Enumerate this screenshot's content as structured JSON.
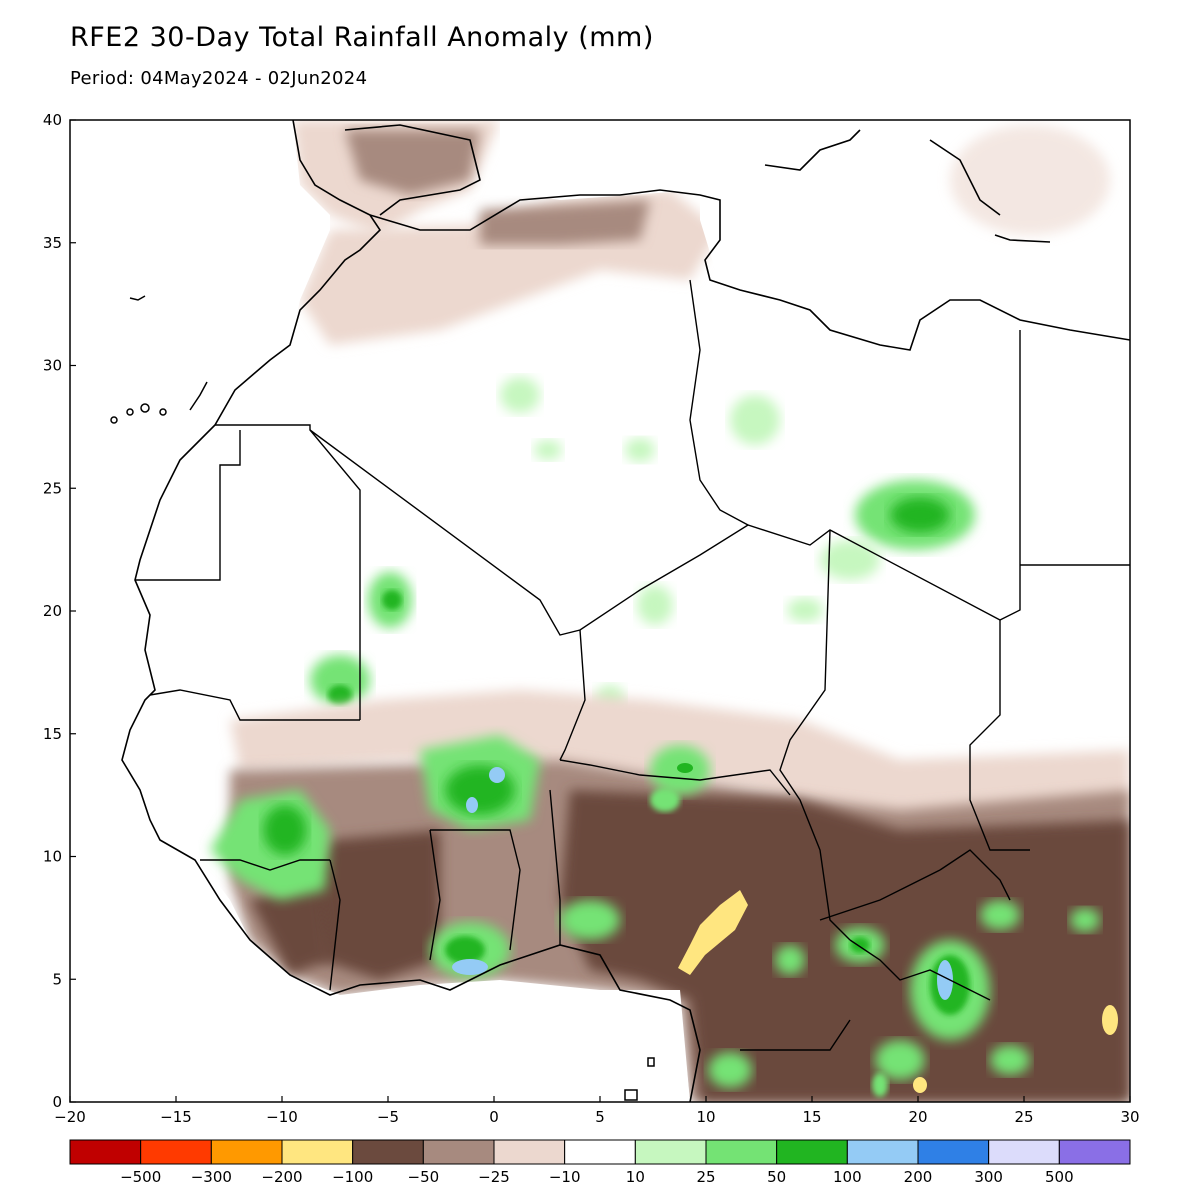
{
  "header": {
    "title": "RFE2 30-Day Total Rainfall Anomaly (mm)",
    "period": "Period: 04May2024 - 02Jun2024"
  },
  "map": {
    "lon_range": [
      -20,
      30
    ],
    "lat_range": [
      0,
      40
    ],
    "x_ticks": [
      {
        "value": -20,
        "label": "−20"
      },
      {
        "value": -15,
        "label": "−15"
      },
      {
        "value": -10,
        "label": "−10"
      },
      {
        "value": -5,
        "label": "−5"
      },
      {
        "value": 0,
        "label": "0"
      },
      {
        "value": 5,
        "label": "5"
      },
      {
        "value": 10,
        "label": "10"
      },
      {
        "value": 15,
        "label": "15"
      },
      {
        "value": 20,
        "label": "20"
      },
      {
        "value": 25,
        "label": "25"
      },
      {
        "value": 30,
        "label": "30"
      }
    ],
    "y_ticks": [
      {
        "value": 0,
        "label": "0"
      },
      {
        "value": 5,
        "label": "5"
      },
      {
        "value": 10,
        "label": "10"
      },
      {
        "value": 15,
        "label": "15"
      },
      {
        "value": 20,
        "label": "20"
      },
      {
        "value": 25,
        "label": "25"
      },
      {
        "value": 30,
        "label": "30"
      },
      {
        "value": 35,
        "label": "35"
      },
      {
        "value": 40,
        "label": "40"
      }
    ]
  },
  "legend": {
    "colors": [
      "#c00000",
      "#ff3a00",
      "#ff9900",
      "#ffe680",
      "#6b4a3e",
      "#a78a7f",
      "#ecd8cf",
      "#ffffff",
      "#c6f7bf",
      "#74e374",
      "#21b521",
      "#94cbf5",
      "#2f80e6",
      "#dcdcfb",
      "#8a6fe6"
    ],
    "labels": [
      "−500",
      "−300",
      "−200",
      "−100",
      "−50",
      "−25",
      "−10",
      "10",
      "25",
      "50",
      "100",
      "200",
      "300",
      "500"
    ]
  }
}
